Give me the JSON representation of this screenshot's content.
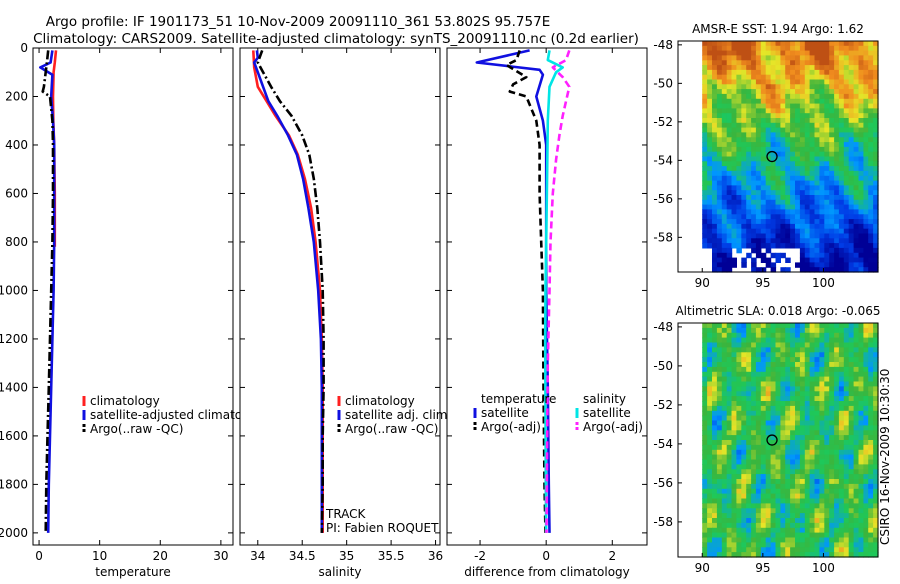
{
  "header": {
    "title_line1": "Argo profile: IF 1901173_51 10-Nov-2009 20091110_361 53.802S 95.757E",
    "title_line2": "Climatology: CARS2009. Satellite-adjusted climatology: synTS_20091110.nc (0.2d earlier)"
  },
  "colors": {
    "climatology": "#ff2020",
    "satellite": "#1010e0",
    "argo": "#000000",
    "salinity_satellite": "#00e5e5",
    "salinity_argo": "#ff20ff"
  },
  "chart_data": [
    {
      "type": "line",
      "id": "temperature",
      "xlabel": "temperature",
      "ylabel": "",
      "xlim": [
        -1,
        32
      ],
      "ylim": [
        2050,
        0
      ],
      "xticks": [
        "0",
        "10",
        "20",
        "30"
      ],
      "xtick_values": [
        0,
        10,
        20,
        30
      ],
      "yticks": [
        "0",
        "200",
        "400",
        "600",
        "800",
        "1000",
        "1200",
        "1400",
        "1600",
        "1800",
        "2000"
      ],
      "ytick_values": [
        0,
        200,
        400,
        600,
        800,
        1000,
        1200,
        1400,
        1600,
        1800,
        2000
      ],
      "legend": [
        "climatology",
        "satellite-adjusted climatology",
        "Argo(..raw -QC)"
      ],
      "series": [
        {
          "name": "climatology",
          "style": "solid",
          "color_key": "climatology",
          "points": [
            [
              2.8,
              10
            ],
            [
              2.6,
              60
            ],
            [
              2.4,
              100
            ],
            [
              2.3,
              200
            ],
            [
              2.35,
              300
            ],
            [
              2.5,
              400
            ],
            [
              2.6,
              600
            ],
            [
              2.6,
              820
            ]
          ]
        },
        {
          "name": "satellite-adjusted climatology",
          "style": "solid",
          "color_key": "satellite",
          "points": [
            [
              2.2,
              10
            ],
            [
              1.9,
              60
            ],
            [
              0.2,
              80
            ],
            [
              2.2,
              110
            ],
            [
              2.0,
              200
            ],
            [
              2.3,
              300
            ],
            [
              2.5,
              400
            ],
            [
              2.5,
              600
            ],
            [
              2.5,
              800
            ],
            [
              2.4,
              1000
            ],
            [
              2.2,
              1200
            ],
            [
              2.0,
              1400
            ],
            [
              1.8,
              1600
            ],
            [
              1.6,
              1800
            ],
            [
              1.5,
              2000
            ]
          ]
        },
        {
          "name": "Argo(..raw -QC)",
          "style": "dashdot",
          "color_key": "argo",
          "points": [
            [
              1.5,
              10
            ],
            [
              1.3,
              60
            ],
            [
              0.8,
              160
            ],
            [
              0.6,
              180
            ],
            [
              1.8,
              200
            ],
            [
              2.2,
              300
            ],
            [
              2.3,
              400
            ],
            [
              2.3,
              600
            ],
            [
              2.2,
              800
            ],
            [
              2.0,
              1000
            ],
            [
              1.8,
              1200
            ],
            [
              1.6,
              1400
            ],
            [
              1.4,
              1600
            ],
            [
              1.2,
              1800
            ],
            [
              1.1,
              2000
            ]
          ]
        }
      ]
    },
    {
      "type": "line",
      "id": "salinity",
      "xlabel": "salinity",
      "xlim": [
        33.8,
        36.05
      ],
      "ylim": [
        2050,
        0
      ],
      "xticks": [
        "34",
        "34.5",
        "35",
        "35.5",
        "36"
      ],
      "xtick_values": [
        34,
        34.5,
        35,
        35.5,
        36
      ],
      "legend": [
        "climatology",
        "satellite adj. clim.",
        "Argo(..raw -QC)"
      ],
      "annotations": [
        "TRACK",
        "PI: Fabien ROQUET"
      ],
      "series": [
        {
          "name": "climatology",
          "style": "solid",
          "color_key": "climatology",
          "points": [
            [
              33.95,
              10
            ],
            [
              33.96,
              80
            ],
            [
              34.0,
              160
            ],
            [
              34.1,
              220
            ],
            [
              34.2,
              280
            ],
            [
              34.35,
              360
            ],
            [
              34.45,
              440
            ],
            [
              34.53,
              540
            ],
            [
              34.6,
              660
            ],
            [
              34.65,
              800
            ],
            [
              34.7,
              1000
            ],
            [
              34.72,
              1200
            ],
            [
              34.73,
              1400
            ],
            [
              34.73,
              1600
            ],
            [
              34.73,
              1800
            ],
            [
              34.73,
              2000
            ]
          ]
        },
        {
          "name": "satellite adj. clim.",
          "style": "solid",
          "color_key": "satellite",
          "points": [
            [
              33.99,
              10
            ],
            [
              34.0,
              40
            ],
            [
              33.96,
              60
            ],
            [
              34.0,
              100
            ],
            [
              34.06,
              160
            ],
            [
              34.12,
              220
            ],
            [
              34.22,
              280
            ],
            [
              34.34,
              360
            ],
            [
              34.44,
              440
            ],
            [
              34.51,
              540
            ],
            [
              34.57,
              660
            ],
            [
              34.63,
              800
            ],
            [
              34.68,
              1000
            ],
            [
              34.71,
              1200
            ],
            [
              34.72,
              1400
            ],
            [
              34.72,
              1600
            ],
            [
              34.72,
              1800
            ],
            [
              34.72,
              2000
            ]
          ]
        },
        {
          "name": "Argo(..raw -QC)",
          "style": "dashdot",
          "color_key": "argo",
          "points": [
            [
              34.05,
              10
            ],
            [
              34.0,
              60
            ],
            [
              34.06,
              100
            ],
            [
              34.15,
              160
            ],
            [
              34.25,
              220
            ],
            [
              34.38,
              280
            ],
            [
              34.5,
              360
            ],
            [
              34.58,
              440
            ],
            [
              34.63,
              540
            ],
            [
              34.67,
              660
            ],
            [
              34.7,
              800
            ],
            [
              34.73,
              1000
            ],
            [
              34.74,
              1200
            ],
            [
              34.74,
              1400
            ],
            [
              34.73,
              1600
            ],
            [
              34.73,
              1800
            ],
            [
              34.72,
              2000
            ]
          ]
        }
      ]
    },
    {
      "type": "line",
      "id": "difference",
      "xlabel": "difference from climatology",
      "xlim": [
        -3.0,
        3.05
      ],
      "ylim": [
        2050,
        0
      ],
      "xticks": [
        "-2",
        "0",
        "2"
      ],
      "xtick_values": [
        -2,
        0,
        2
      ],
      "legend_headers": [
        "temperature",
        "salinity"
      ],
      "legend": [
        "satellite",
        "Argo(-adj)",
        "satellite",
        "Argo(-adj)"
      ],
      "series": [
        {
          "name": "temperature satellite",
          "style": "solid",
          "color_key": "satellite",
          "points": [
            [
              -0.5,
              10
            ],
            [
              -2.1,
              60
            ],
            [
              -0.2,
              90
            ],
            [
              -0.1,
              110
            ],
            [
              -0.3,
              200
            ],
            [
              -0.1,
              300
            ],
            [
              0.0,
              400
            ],
            [
              0.0,
              600
            ],
            [
              0.0,
              1000
            ],
            [
              0.05,
              1400
            ],
            [
              0.08,
              1800
            ],
            [
              0.1,
              2000
            ]
          ]
        },
        {
          "name": "temperature Argo(-adj)",
          "style": "dashed",
          "color_key": "argo",
          "points": [
            [
              -0.8,
              10
            ],
            [
              -0.9,
              50
            ],
            [
              -1.2,
              70
            ],
            [
              -0.6,
              120
            ],
            [
              -1.0,
              150
            ],
            [
              -1.1,
              180
            ],
            [
              -0.6,
              200
            ],
            [
              -0.3,
              300
            ],
            [
              -0.2,
              400
            ],
            [
              -0.2,
              600
            ],
            [
              -0.15,
              800
            ],
            [
              -0.1,
              1000
            ],
            [
              -0.08,
              1400
            ],
            [
              -0.05,
              1800
            ],
            [
              -0.02,
              2000
            ]
          ]
        },
        {
          "name": "salinity satellite",
          "style": "solid",
          "color_key": "salinity_satellite",
          "points": [
            [
              0.1,
              10
            ],
            [
              0.05,
              50
            ],
            [
              0.5,
              80
            ],
            [
              0.3,
              100
            ],
            [
              0.1,
              160
            ],
            [
              0.05,
              300
            ],
            [
              0.03,
              500
            ],
            [
              0.0,
              800
            ],
            [
              -0.02,
              1000
            ],
            [
              -0.03,
              1200
            ],
            [
              -0.02,
              1500
            ],
            [
              -0.01,
              1800
            ],
            [
              0.0,
              2000
            ]
          ]
        },
        {
          "name": "salinity Argo(-adj)",
          "style": "dashed",
          "color_key": "salinity_argo",
          "points": [
            [
              0.7,
              10
            ],
            [
              0.6,
              50
            ],
            [
              0.2,
              80
            ],
            [
              0.5,
              120
            ],
            [
              0.7,
              160
            ],
            [
              0.6,
              220
            ],
            [
              0.5,
              280
            ],
            [
              0.4,
              360
            ],
            [
              0.3,
              460
            ],
            [
              0.2,
              600
            ],
            [
              0.13,
              800
            ],
            [
              0.1,
              1000
            ],
            [
              0.05,
              1300
            ],
            [
              0.03,
              1600
            ],
            [
              0.01,
              2000
            ]
          ]
        }
      ]
    },
    {
      "type": "heatmap",
      "id": "sst",
      "title": "AMSR-E SST: 1.94  Argo: 1.62",
      "xlim": [
        88,
        104.5
      ],
      "ylim": [
        -59.8,
        -47.8
      ],
      "xticks": [
        "90",
        "95",
        "100"
      ],
      "xtick_values": [
        90,
        95,
        100
      ],
      "yticks": [
        "-48",
        "-50",
        "-52",
        "-54",
        "-56",
        "-58"
      ],
      "ytick_values": [
        -48,
        -50,
        -52,
        -54,
        -56,
        -58
      ],
      "marker": {
        "lon": 95.757,
        "lat": -53.802
      },
      "seed": 7
    },
    {
      "type": "heatmap",
      "id": "sla",
      "title": "Altimetric SLA: 0.018  Argo: -0.065",
      "xlim": [
        88,
        104.5
      ],
      "ylim": [
        -59.8,
        -47.8
      ],
      "xticks": [
        "90",
        "95",
        "100"
      ],
      "xtick_values": [
        90,
        95,
        100
      ],
      "yticks": [
        "-48",
        "-50",
        "-52",
        "-54",
        "-56",
        "-58"
      ],
      "ytick_values": [
        -48,
        -50,
        -52,
        -54,
        -56,
        -58
      ],
      "marker": {
        "lon": 95.757,
        "lat": -53.802
      },
      "seed": 13
    }
  ],
  "footer": {
    "credit": "CSIRO 16-Nov-2009 10:30:30"
  }
}
